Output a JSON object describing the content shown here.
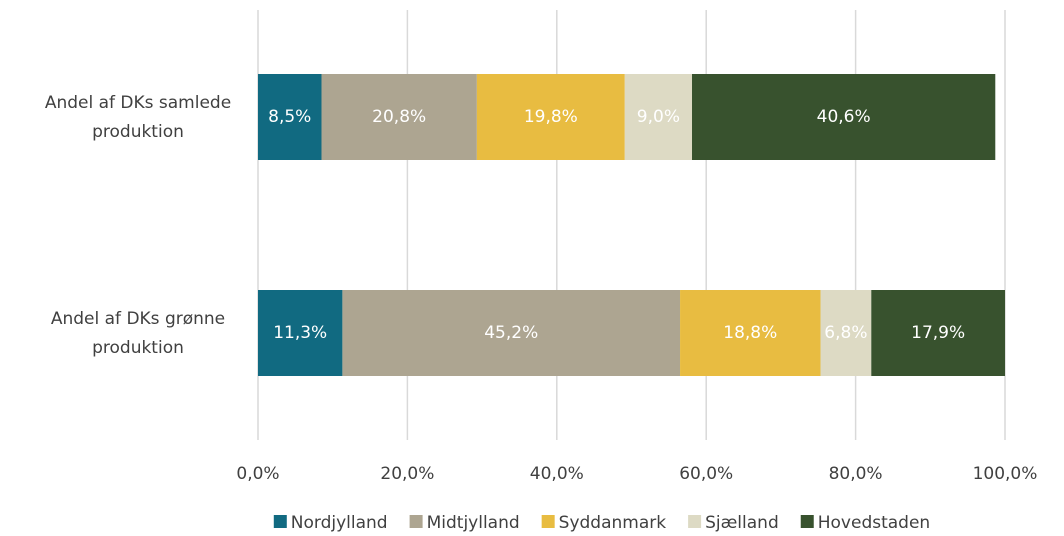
{
  "chart_data": {
    "type": "stacked_barh",
    "categories": [
      "Andel af DKs samlede produktion",
      "Andel af DKs grønne produktion"
    ],
    "series": [
      {
        "name": "Nordjylland",
        "color": "#116a81",
        "values": [
          8.5,
          11.3
        ],
        "value_labels": [
          "8,5%",
          "11,3%"
        ]
      },
      {
        "name": "Midtjylland",
        "color": "#ada591",
        "values": [
          20.8,
          45.2
        ],
        "value_labels": [
          "20,8%",
          "45,2%"
        ]
      },
      {
        "name": "Syddanmark",
        "color": "#e8bc41",
        "values": [
          19.8,
          18.8
        ],
        "value_labels": [
          "19,8%",
          "18,8%"
        ]
      },
      {
        "name": "Sjælland",
        "color": "#dddac4",
        "values": [
          9.0,
          6.8
        ],
        "value_labels": [
          "9,0%",
          "6,8%"
        ]
      },
      {
        "name": "Hovedstaden",
        "color": "#38522e",
        "values": [
          40.6,
          17.9
        ],
        "value_labels": [
          "40,6%",
          "17,9%"
        ]
      }
    ],
    "xlim": [
      0,
      100
    ],
    "xticks": [
      {
        "value": 0,
        "label": "0,0%"
      },
      {
        "value": 20,
        "label": "20,0%"
      },
      {
        "value": 40,
        "label": "40,0%"
      },
      {
        "value": 60,
        "label": "60,0%"
      },
      {
        "value": 80,
        "label": "80,0%"
      },
      {
        "value": 100,
        "label": "100,0%"
      }
    ],
    "grid": true,
    "legend": "bottom"
  }
}
